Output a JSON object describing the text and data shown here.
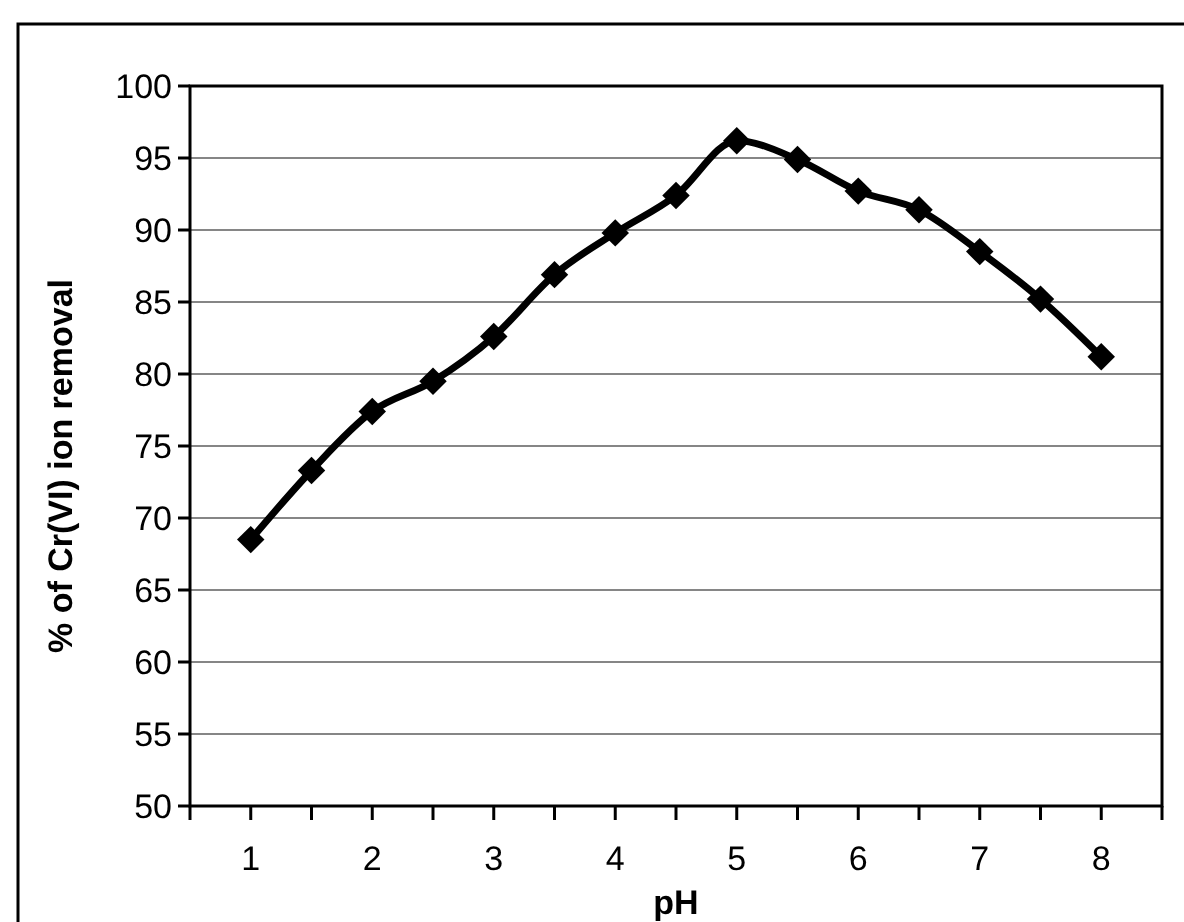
{
  "chart_data": {
    "type": "line",
    "xlabel": "pH",
    "ylabel": "% of Cr(VI) ion removal",
    "x": [
      1,
      1.5,
      2,
      2.5,
      3,
      3.5,
      4,
      4.5,
      5,
      5.5,
      6,
      6.5,
      7,
      7.5,
      8
    ],
    "series": [
      {
        "color": "#000000",
        "values": [
          68.5,
          73.3,
          77.4,
          79.5,
          82.6,
          86.9,
          89.8,
          92.4,
          96.2,
          94.9,
          92.7,
          91.4,
          88.5,
          85.2,
          81.2
        ]
      }
    ],
    "xlim": [
      0.5,
      8.5
    ],
    "xticks": [
      {
        "value": 0.5,
        "label": null
      },
      1,
      {
        "value": 1.5,
        "label": null
      },
      2,
      {
        "value": 2.5,
        "label": null
      },
      3,
      {
        "value": 3.5,
        "label": null
      },
      4,
      {
        "value": 4.5,
        "label": null
      },
      5,
      {
        "value": 5.5,
        "label": null
      },
      6,
      {
        "value": 6.5,
        "label": null
      },
      7,
      {
        "value": 7.5,
        "label": null
      },
      8,
      {
        "value": 8.5,
        "label": null
      }
    ],
    "ylim": [
      50,
      100
    ],
    "yticks": [
      50,
      55,
      60,
      65,
      70,
      75,
      80,
      85,
      90,
      95,
      100
    ],
    "grid": "y",
    "marker": "diamond",
    "line_style": "solid"
  }
}
